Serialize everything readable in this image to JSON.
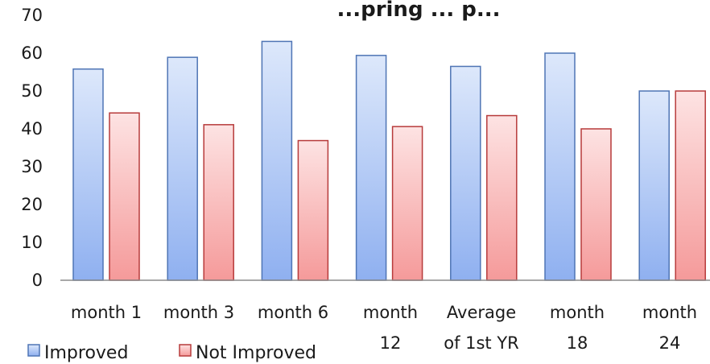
{
  "chart_data": {
    "type": "bar",
    "title": "...pring ... p...",
    "categories": [
      [
        "month 1"
      ],
      [
        "month 3"
      ],
      [
        "month 6"
      ],
      [
        "month",
        "12"
      ],
      [
        "Average",
        "of 1st YR"
      ],
      [
        "month",
        "18"
      ],
      [
        "month",
        "24"
      ]
    ],
    "series": [
      {
        "name": "Improved",
        "values": [
          55.8,
          58.9,
          63.1,
          59.4,
          56.5,
          60.0,
          50.0
        ],
        "color_top": "#dde8fb",
        "color_bottom": "#8fb0f0",
        "stroke": "#4f75b5"
      },
      {
        "name": "Not Improved",
        "values": [
          44.2,
          41.1,
          36.9,
          40.6,
          43.5,
          40.0,
          50.0
        ],
        "color_top": "#fde3e3",
        "color_bottom": "#f59a9a",
        "stroke": "#b73b3b"
      }
    ],
    "yticks": [
      0,
      10,
      20,
      30,
      40,
      50,
      60,
      70
    ],
    "ylim": [
      0,
      70
    ],
    "grid": false,
    "legend_position": "bottom-left"
  }
}
